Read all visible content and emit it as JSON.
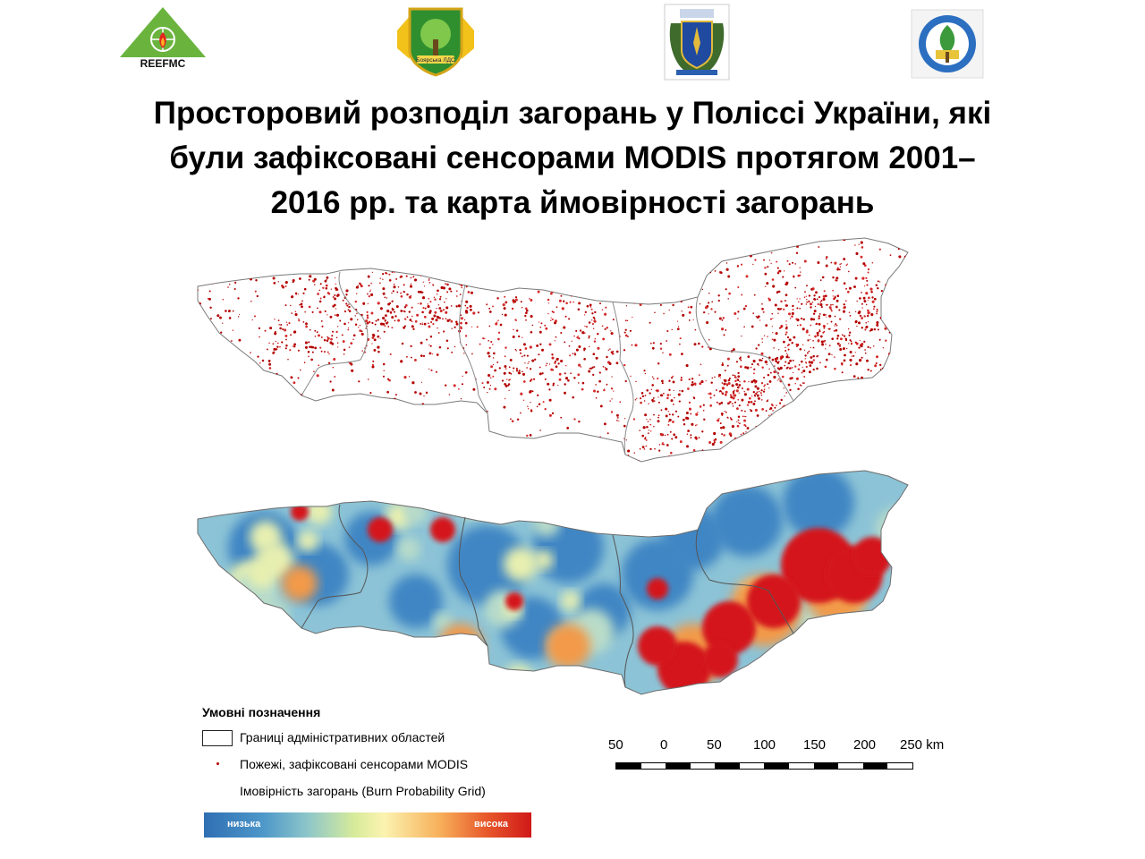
{
  "logos": [
    {
      "name": "reefmc-logo",
      "text": "REEFMC"
    },
    {
      "name": "boiarska-lds-logo",
      "text": "Боярська ЛДС"
    },
    {
      "name": "ministry-emblem",
      "text": ""
    },
    {
      "name": "university-emblem",
      "text": ""
    }
  ],
  "title": {
    "lines": [
      "Просторовий розподіл загорань у Поліссі України, які",
      "були зафіксовані сенсорами MODIS протягом 2001–",
      "2016 рр. та карта ймовірності загорань"
    ]
  },
  "legend": {
    "heading": "Умовні позначення",
    "items": [
      {
        "label": "Границі адміністративних областей",
        "symbol": "outline-box"
      },
      {
        "label": "Пожежі, зафіксовані сенсорами MODIS",
        "symbol": "red-dot"
      },
      {
        "label": "Імовірність загорань (Burn Probability Grid)",
        "symbol": "gradient"
      }
    ],
    "gradient_low": "низька",
    "gradient_high": "висока",
    "colors": {
      "low": "#2f6fb3",
      "mid": "#fbf3b0",
      "high": "#d01818",
      "fire_dot": "#b00000"
    }
  },
  "scale_bar": {
    "labels": [
      "50",
      "0",
      "50",
      "100",
      "150",
      "200",
      "250 km"
    ]
  }
}
